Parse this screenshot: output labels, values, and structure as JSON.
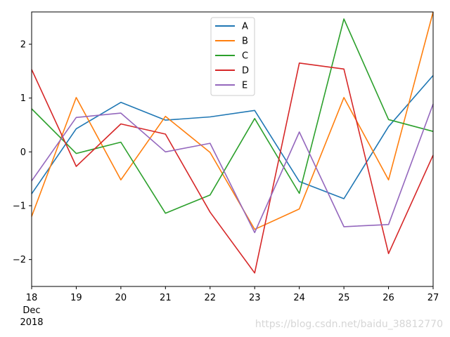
{
  "chart_data": {
    "type": "line",
    "title": "",
    "xlabel": "",
    "ylabel": "",
    "x": [
      "18",
      "19",
      "20",
      "21",
      "22",
      "23",
      "24",
      "25",
      "26",
      "27"
    ],
    "x_sublabels": {
      "month": "Dec",
      "year": "2018"
    },
    "ylim": [
      -2.5,
      2.6
    ],
    "yticks": [
      -2,
      -1,
      0,
      1,
      2
    ],
    "ytick_labels": [
      "−2",
      "−1",
      "0",
      "1",
      "2"
    ],
    "grid": false,
    "legend_position": "top-center",
    "series": [
      {
        "name": "A",
        "color": "#1f77b4",
        "values": [
          -0.78,
          0.43,
          0.92,
          0.59,
          0.65,
          0.77,
          -0.55,
          -0.87,
          0.47,
          1.42
        ]
      },
      {
        "name": "B",
        "color": "#ff7f0e",
        "values": [
          -1.2,
          1.01,
          -0.52,
          0.66,
          -0.01,
          -1.44,
          -1.06,
          1.01,
          -0.52,
          2.6
        ]
      },
      {
        "name": "C",
        "color": "#2ca02c",
        "values": [
          0.8,
          -0.03,
          0.18,
          -1.14,
          -0.8,
          0.62,
          -0.77,
          2.47,
          0.6,
          0.38
        ]
      },
      {
        "name": "D",
        "color": "#d62728",
        "values": [
          1.53,
          -0.27,
          0.52,
          0.33,
          -1.12,
          -2.25,
          1.65,
          1.54,
          -1.89,
          -0.06
        ]
      },
      {
        "name": "E",
        "color": "#9467bd",
        "values": [
          -0.54,
          0.64,
          0.72,
          0.0,
          0.16,
          -1.5,
          0.37,
          -1.39,
          -1.35,
          0.89
        ]
      }
    ]
  },
  "watermark": "https://blog.csdn.net/baidu_38812770"
}
